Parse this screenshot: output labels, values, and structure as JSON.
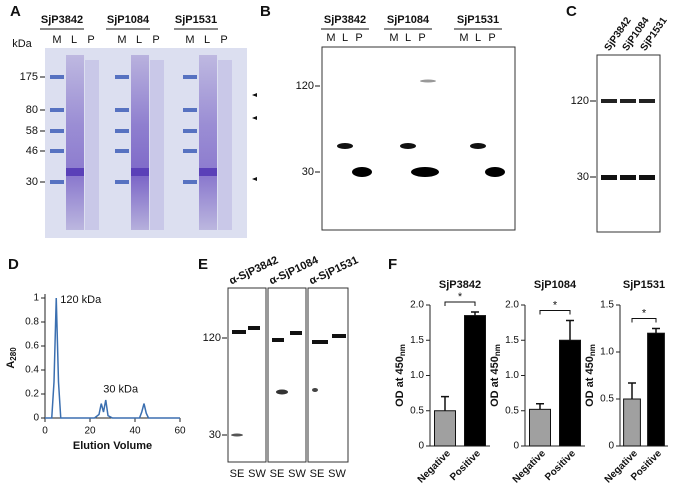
{
  "panels": {
    "A": {
      "label": "A",
      "unit": "kDa",
      "groups": [
        "SjP3842",
        "SjP1084",
        "SjP1531"
      ],
      "lanes": [
        "M",
        "L",
        "P"
      ],
      "markers": [
        175,
        80,
        58,
        46,
        30
      ]
    },
    "B": {
      "label": "B",
      "groups": [
        "SjP3842",
        "SjP1084",
        "SjP1531"
      ],
      "lanes": [
        "M",
        "L",
        "P"
      ],
      "markers": [
        120,
        30
      ]
    },
    "C": {
      "label": "C",
      "lanes": [
        "SjP3842",
        "SjP1084",
        "SjP1531"
      ],
      "markers": [
        120,
        30
      ]
    },
    "D": {
      "label": "D"
    },
    "E": {
      "label": "E",
      "antibodies": [
        "α-SjP3842",
        "α-SjP1084",
        "α-SjP1531"
      ],
      "fractions": [
        "SE",
        "SW"
      ],
      "markers": [
        120,
        30
      ]
    },
    "F": {
      "label": "F"
    }
  },
  "chart_data": [
    {
      "type": "line",
      "x_label": "Elution Volume",
      "y_label": "A",
      "y_label_sub": "280",
      "annotations": [
        "120 kDa",
        "30 kDa"
      ],
      "xlim": [
        0,
        60
      ],
      "xticks": [
        0,
        20,
        40,
        60
      ],
      "ylim": [
        0,
        1
      ],
      "yticks": [
        0,
        0.2,
        0.4,
        0.6,
        0.8,
        1
      ],
      "x": [
        0,
        3,
        4,
        5,
        6,
        7,
        10,
        22,
        24,
        25,
        26,
        27,
        28,
        30,
        42,
        43,
        44,
        45,
        46,
        60
      ],
      "series": [
        {
          "color": "#3b6fb0",
          "values": [
            0,
            0,
            0.3,
            1.0,
            0.3,
            0,
            0,
            0,
            0.03,
            0.12,
            0.05,
            0.15,
            0.02,
            0,
            0,
            0.05,
            0.12,
            0.04,
            0,
            0
          ]
        }
      ]
    },
    {
      "type": "bar",
      "title": "SjP3842",
      "y_label": "OD at 450",
      "y_label_sub": "nm",
      "annotation": "*",
      "categories": [
        "Negative",
        "Positive"
      ],
      "values": [
        0.5,
        1.85
      ],
      "errors": [
        0.2,
        0.05
      ],
      "colors": [
        "#a0a0a0",
        "#000000"
      ],
      "ylim": [
        0,
        2
      ],
      "yticks": [
        0,
        0.5,
        {
          "value": 1,
          "label": "1.0"
        },
        1.5,
        {
          "value": 2,
          "label": "2.0"
        }
      ]
    },
    {
      "type": "bar",
      "title": "SjP1084",
      "y_label": "OD at 450",
      "y_label_sub": "nm",
      "annotation": "*",
      "categories": [
        "Negative",
        "Positive"
      ],
      "values": [
        0.52,
        1.5
      ],
      "errors": [
        0.08,
        0.28
      ],
      "colors": [
        "#a0a0a0",
        "#000000"
      ],
      "ylim": [
        0,
        2
      ],
      "yticks": [
        0,
        0.5,
        {
          "value": 1,
          "label": "1.0"
        },
        1.5,
        {
          "value": 2,
          "label": "2.0"
        }
      ]
    },
    {
      "type": "bar",
      "title": "SjP1531",
      "y_label": "OD at 450",
      "y_label_sub": "nm",
      "annotation": "*",
      "categories": [
        "Negative",
        "Positive"
      ],
      "values": [
        0.5,
        1.2
      ],
      "errors": [
        0.17,
        0.05
      ],
      "colors": [
        "#a0a0a0",
        "#000000"
      ],
      "ylim": [
        0,
        1.5
      ],
      "yticks": [
        0,
        0.5,
        {
          "value": 1,
          "label": "1.0"
        },
        1.5
      ]
    }
  ]
}
